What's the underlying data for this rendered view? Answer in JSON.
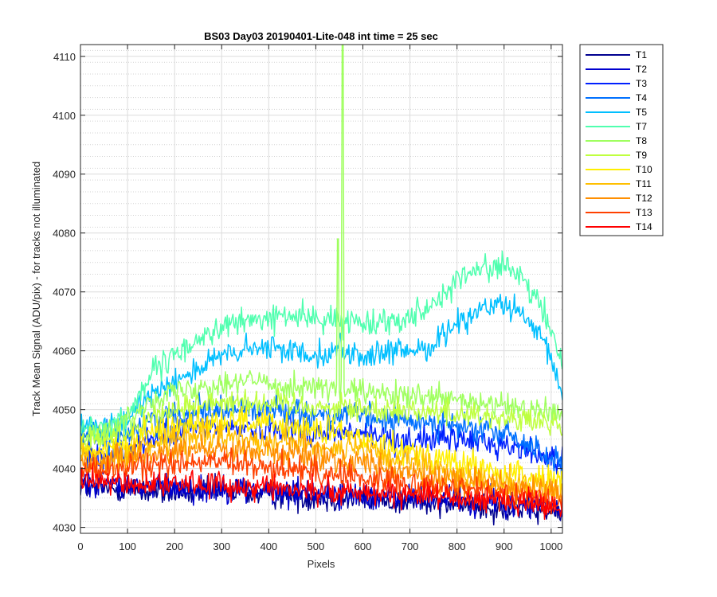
{
  "chart_data": {
    "type": "line",
    "title": "BS03 Day03 20190401-Lite-048 int time = 25 sec",
    "xlabel": "Pixels",
    "ylabel": "Track Mean Signal (ADU/pix) - for tracks not illuminated",
    "xlim": [
      0,
      1024
    ],
    "ylim": [
      4029,
      4112
    ],
    "x_ticks": [
      0,
      100,
      200,
      300,
      400,
      500,
      600,
      700,
      800,
      900,
      1000
    ],
    "y_ticks": [
      4030,
      4040,
      4050,
      4060,
      4070,
      4080,
      4090,
      4100,
      4110
    ],
    "grid": true,
    "minor_grid": true,
    "legend_position": "outside-top-right",
    "x": [
      0,
      50,
      100,
      150,
      200,
      250,
      300,
      350,
      400,
      450,
      500,
      550,
      600,
      650,
      700,
      750,
      800,
      850,
      900,
      950,
      1000,
      1024
    ],
    "series": [
      {
        "name": "T1",
        "color": "#00008f",
        "noise": 1.6,
        "values": [
          4037,
          4036.5,
          4036.5,
          4036,
          4036,
          4036,
          4036,
          4036,
          4035.5,
          4035.5,
          4035,
          4035,
          4035,
          4034.5,
          4034.5,
          4034,
          4034,
          4033.5,
          4033.5,
          4033,
          4032.5,
          4032
        ]
      },
      {
        "name": "T2",
        "color": "#0000cf",
        "noise": 1.6,
        "values": [
          4038,
          4037.5,
          4037,
          4037,
          4037,
          4036.5,
          4036.5,
          4036.5,
          4036,
          4036,
          4036,
          4035.5,
          4035.5,
          4035,
          4035,
          4035,
          4034.5,
          4034.5,
          4034,
          4034,
          4033.5,
          4033
        ]
      },
      {
        "name": "T3",
        "color": "#0020ff",
        "noise": 1.6,
        "values": [
          4043,
          4042,
          4043,
          4045,
          4046,
          4047,
          4047,
          4047,
          4047,
          4047,
          4046,
          4046,
          4046,
          4045,
          4045,
          4045,
          4045,
          4044.5,
          4044,
          4043,
          4042,
          4041
        ]
      },
      {
        "name": "T4",
        "color": "#0070ff",
        "noise": 1.6,
        "values": [
          4046,
          4045,
          4046,
          4048,
          4049,
          4050,
          4050,
          4050,
          4050,
          4050,
          4049,
          4049,
          4049,
          4048,
          4048,
          4048,
          4047,
          4046.5,
          4046,
          4044,
          4042,
          4040
        ]
      },
      {
        "name": "T5",
        "color": "#00bfff",
        "noise": 1.5,
        "values": [
          4047,
          4046.5,
          4048,
          4053,
          4055,
          4057,
          4059,
          4060,
          4060.5,
          4060,
          4059.5,
          4060,
          4059,
          4059.5,
          4060,
          4061,
          4065,
          4067,
          4068,
          4065,
          4059,
          4052
        ]
      },
      {
        "name": "T7",
        "color": "#50ffaf",
        "noise": 1.5,
        "values": [
          4047,
          4047,
          4049,
          4056,
          4059,
          4062,
          4064,
          4065,
          4065.5,
          4066,
          4065.5,
          4065,
          4065,
          4065,
          4066,
          4068,
          4072,
          4074,
          4074.5,
          4071,
          4064,
          4057
        ]
      },
      {
        "name": "T8",
        "color": "#9fff5f",
        "noise": 1.5,
        "values": [
          4046,
          4046,
          4048,
          4052,
          4053,
          4054,
          4054.5,
          4055,
          4054.5,
          4054,
          4054,
          4053,
          4053,
          4052.5,
          4052,
          4052,
          4051.5,
          4051,
          4050.5,
          4050,
          4049.5,
          4049
        ]
      },
      {
        "name": "T9",
        "color": "#bfff3f",
        "noise": 1.5,
        "values": [
          4045,
          4045,
          4046,
          4049,
          4050,
          4051,
          4051.5,
          4051.5,
          4051,
          4051,
          4050.5,
          4050.5,
          4050,
          4050,
          4050,
          4049.5,
          4049.5,
          4049,
          4048.5,
          4048,
          4047.5,
          4047
        ]
      },
      {
        "name": "T10",
        "color": "#ffef00",
        "noise": 1.7,
        "values": [
          4043,
          4043,
          4044,
          4046,
          4047,
          4048,
          4048,
          4048,
          4047.5,
          4047,
          4046.5,
          4046,
          4045,
          4044,
          4043,
          4042,
          4041,
          4040,
          4039,
          4038.5,
          4038,
          4037.5
        ]
      },
      {
        "name": "T11",
        "color": "#ffbf00",
        "noise": 1.6,
        "values": [
          4042,
          4042,
          4042.5,
          4044,
          4045,
          4045.5,
          4045.5,
          4045,
          4045,
          4044.5,
          4044,
          4043.5,
          4043,
          4042,
          4041,
          4040,
          4039,
          4038,
          4037.5,
          4037,
          4036.5,
          4036
        ]
      },
      {
        "name": "T12",
        "color": "#ff8f00",
        "noise": 1.6,
        "values": [
          4041,
          4041,
          4041.5,
          4042.5,
          4043,
          4043.5,
          4043.5,
          4043,
          4043,
          4042.5,
          4042,
          4041.5,
          4041,
          4040,
          4039,
          4038.5,
          4038,
          4037.5,
          4037,
          4036.5,
          4036,
          4035.5
        ]
      },
      {
        "name": "T13",
        "color": "#ff4000",
        "noise": 1.6,
        "values": [
          4040,
          4039.5,
          4040,
          4040.5,
          4041,
          4041,
          4041,
          4040.5,
          4040,
          4040,
          4039.5,
          4039,
          4038.5,
          4038,
          4037.5,
          4037,
          4036.5,
          4036,
          4035.5,
          4035,
          4034.5,
          4034
        ]
      },
      {
        "name": "T14",
        "color": "#ff0000",
        "noise": 1.5,
        "values": [
          4038,
          4037.5,
          4037.5,
          4037.5,
          4037.5,
          4037.5,
          4037,
          4037,
          4037,
          4036.5,
          4036.5,
          4036,
          4036,
          4036,
          4035.5,
          4035.5,
          4035,
          4035,
          4034.5,
          4034.5,
          4034,
          4033.5
        ]
      }
    ],
    "annotations": [
      {
        "series": "T8",
        "type": "spike",
        "x": 557,
        "y": 4112,
        "note": "spike runs off the top of the axes"
      },
      {
        "series": "T8",
        "type": "spike",
        "x": 547,
        "y": 4079
      },
      {
        "series": "T5",
        "type": "spike",
        "x": 552,
        "y": 4063
      }
    ]
  }
}
